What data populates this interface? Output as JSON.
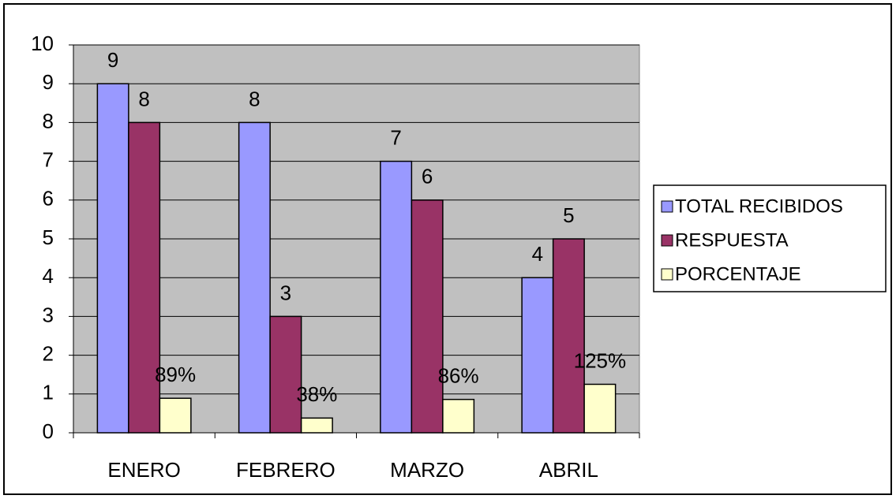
{
  "chart_data": {
    "type": "bar",
    "categories": [
      "ENERO",
      "FEBRERO",
      "MARZO",
      "ABRIL"
    ],
    "series": [
      {
        "name": "TOTAL RECIBIDOS",
        "color": "#9999ff",
        "values": [
          9,
          8,
          7,
          4
        ]
      },
      {
        "name": "RESPUESTA",
        "color": "#993366",
        "values": [
          8,
          3,
          6,
          5
        ]
      },
      {
        "name": "PORCENTAJE",
        "color": "#ffffcc",
        "values": [
          0.89,
          0.38,
          0.86,
          1.25
        ],
        "value_labels": [
          "89%",
          "38%",
          "86%",
          "125%"
        ]
      }
    ],
    "ylim": [
      0,
      10
    ],
    "yticks": [
      0,
      1,
      2,
      3,
      4,
      5,
      6,
      7,
      8,
      9,
      10
    ],
    "grid": true,
    "legend": "right"
  }
}
